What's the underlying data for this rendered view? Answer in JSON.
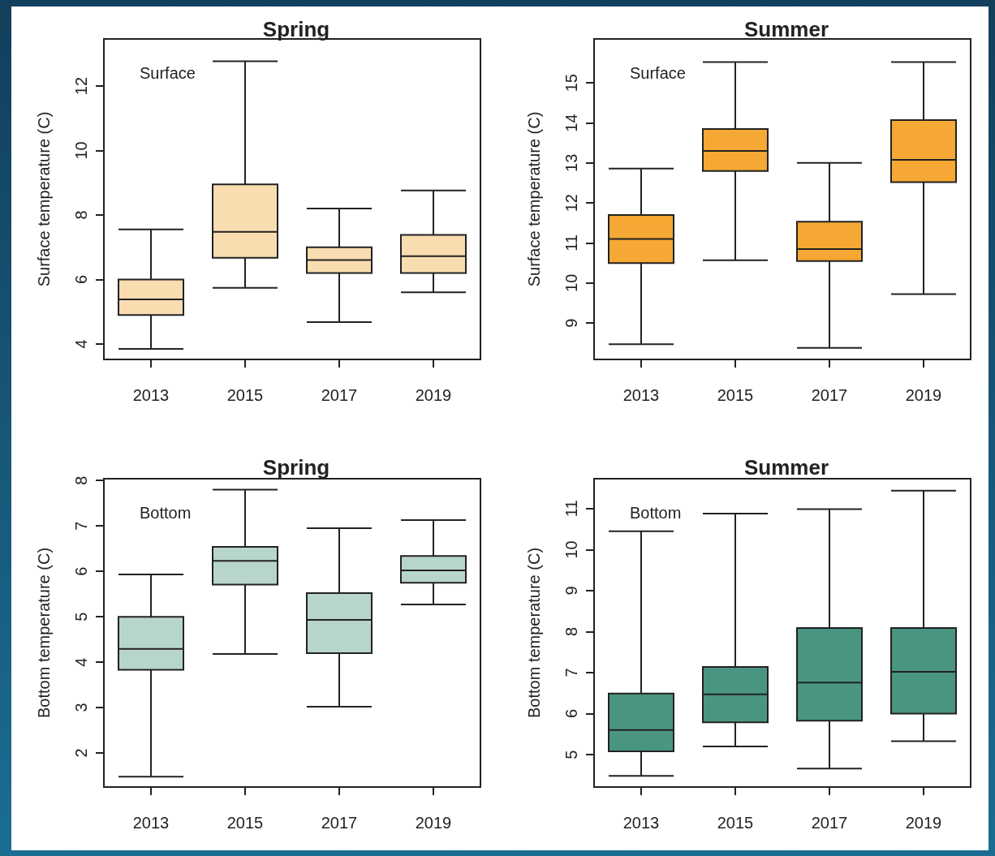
{
  "chart_data": [
    {
      "type": "box",
      "title": "Spring",
      "ylabel": "Surface temperature (C)",
      "annotations": [
        "Surface"
      ],
      "categories": [
        "2013",
        "2015",
        "2017",
        "2019"
      ],
      "color": "#f9dcb0",
      "ylim": [
        3.52,
        13.46
      ],
      "yticks": [
        4,
        6,
        8,
        10,
        12
      ],
      "boxes": [
        {
          "low": 3.85,
          "q1": 4.9,
          "median": 5.38,
          "q3": 6.0,
          "high": 7.55
        },
        {
          "low": 5.74,
          "q1": 6.67,
          "median": 7.48,
          "q3": 8.95,
          "high": 12.77
        },
        {
          "low": 4.68,
          "q1": 6.2,
          "median": 6.6,
          "q3": 7.0,
          "high": 8.2
        },
        {
          "low": 5.6,
          "q1": 6.2,
          "median": 6.72,
          "q3": 7.38,
          "high": 8.76
        }
      ]
    },
    {
      "type": "box",
      "title": "Summer",
      "ylabel": "Surface temperature (C)",
      "annotations": [
        "Surface"
      ],
      "categories": [
        "2013",
        "2015",
        "2017",
        "2019"
      ],
      "color": "#f5a833",
      "ylim": [
        8.09,
        16.1
      ],
      "yticks": [
        9,
        10,
        11,
        12,
        13,
        14,
        15
      ],
      "boxes": [
        {
          "low": 8.47,
          "q1": 10.5,
          "median": 11.1,
          "q3": 11.7,
          "high": 12.86
        },
        {
          "low": 10.57,
          "q1": 12.8,
          "median": 13.3,
          "q3": 13.85,
          "high": 15.52
        },
        {
          "low": 8.38,
          "q1": 10.55,
          "median": 10.85,
          "q3": 11.53,
          "high": 13.0
        },
        {
          "low": 9.72,
          "q1": 12.52,
          "median": 13.08,
          "q3": 14.07,
          "high": 15.52
        }
      ]
    },
    {
      "type": "box",
      "title": "Spring",
      "ylabel": "Bottom temperature (C)",
      "annotations": [
        "Bottom"
      ],
      "categories": [
        "2013",
        "2015",
        "2017",
        "2019"
      ],
      "color": "#b7d5cc",
      "ylim": [
        1.25,
        8.04
      ],
      "yticks": [
        2,
        3,
        4,
        5,
        6,
        7,
        8
      ],
      "boxes": [
        {
          "low": 1.48,
          "q1": 3.83,
          "median": 4.29,
          "q3": 5.0,
          "high": 5.93
        },
        {
          "low": 4.18,
          "q1": 5.71,
          "median": 6.23,
          "q3": 6.54,
          "high": 7.8
        },
        {
          "low": 3.02,
          "q1": 4.2,
          "median": 4.93,
          "q3": 5.52,
          "high": 6.95
        },
        {
          "low": 5.27,
          "q1": 5.75,
          "median": 6.02,
          "q3": 6.34,
          "high": 7.13
        }
      ]
    },
    {
      "type": "box",
      "title": "Summer",
      "ylabel": "Bottom temperature (C)",
      "annotations": [
        "Bottom"
      ],
      "categories": [
        "2013",
        "2015",
        "2017",
        "2019"
      ],
      "color": "#4a9581",
      "ylim": [
        4.21,
        11.73
      ],
      "yticks": [
        5,
        6,
        7,
        8,
        9,
        10,
        11
      ],
      "boxes": [
        {
          "low": 4.48,
          "q1": 5.08,
          "median": 5.6,
          "q3": 6.49,
          "high": 10.45
        },
        {
          "low": 5.2,
          "q1": 5.79,
          "median": 6.47,
          "q3": 7.14,
          "high": 10.88
        },
        {
          "low": 4.66,
          "q1": 5.83,
          "median": 6.76,
          "q3": 8.09,
          "high": 10.99
        },
        {
          "low": 5.33,
          "q1": 6.0,
          "median": 7.02,
          "q3": 8.09,
          "high": 11.44
        }
      ]
    }
  ]
}
